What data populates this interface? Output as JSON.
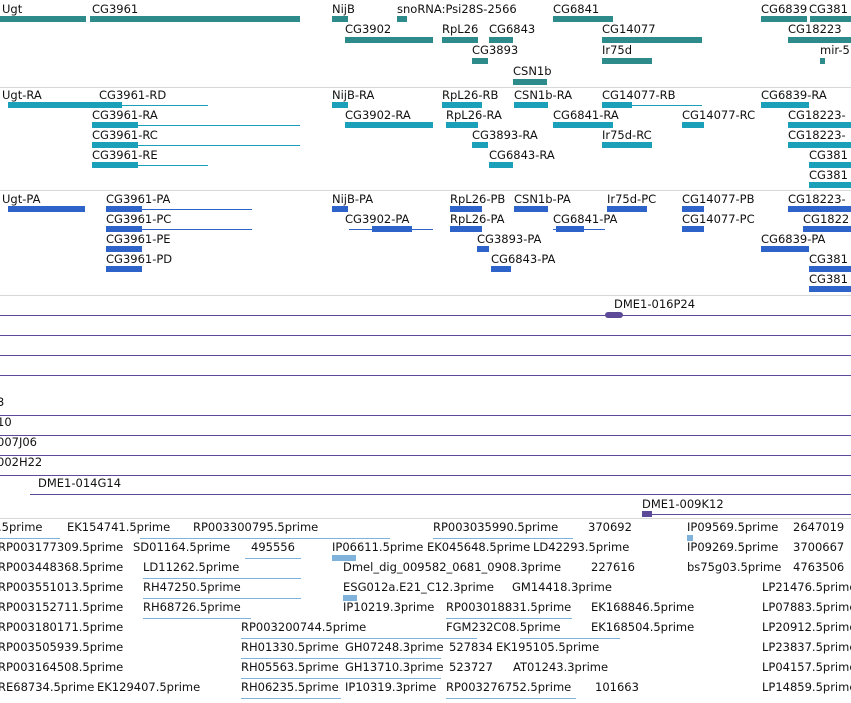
{
  "colors": {
    "gene": "#2e8b8b",
    "transcript_a": "#1aa0b8",
    "transcript_b": "#2e63c9",
    "clone": "#5c4a99",
    "est": "#7fb3db",
    "separator": "#d8d8d8"
  },
  "track_genes": [
    {
      "label": "Ugt"
    },
    {
      "label": "CG3961"
    },
    {
      "label": "NijB"
    },
    {
      "label": "snoRNA:Psi28S-2566"
    },
    {
      "label": "CG6841"
    },
    {
      "label": "CG6839"
    },
    {
      "label": "CG381"
    },
    {
      "label": "CG3902"
    },
    {
      "label": "RpL26"
    },
    {
      "label": "CG6843"
    },
    {
      "label": "CG14077"
    },
    {
      "label": "CG18223"
    },
    {
      "label": "CG3893"
    },
    {
      "label": "Ir75d"
    },
    {
      "label": "mir-5"
    },
    {
      "label": "CSN1b"
    }
  ],
  "track_transcripts_a": [
    {
      "label": "Ugt-RA"
    },
    {
      "label": "CG3961-RD"
    },
    {
      "label": "NijB-RA"
    },
    {
      "label": "RpL26-RB"
    },
    {
      "label": "CSN1b-RA"
    },
    {
      "label": "CG14077-RB"
    },
    {
      "label": "CG6839-RA"
    },
    {
      "label": "CG3961-RA"
    },
    {
      "label": "CG3902-RA"
    },
    {
      "label": "RpL26-RA"
    },
    {
      "label": "CG6841-RA"
    },
    {
      "label": "CG14077-RC"
    },
    {
      "label": "CG18223-"
    },
    {
      "label": "CG3961-RC"
    },
    {
      "label": "CG3893-RA"
    },
    {
      "label": "Ir75d-RC"
    },
    {
      "label": "CG18223-"
    },
    {
      "label": "CG3961-RE"
    },
    {
      "label": "CG6843-RA"
    },
    {
      "label": "CG381"
    },
    {
      "label": "CG381"
    }
  ],
  "track_transcripts_b": [
    {
      "label": "Ugt-PA"
    },
    {
      "label": "CG3961-PA"
    },
    {
      "label": "NijB-PA"
    },
    {
      "label": "RpL26-PB"
    },
    {
      "label": "CSN1b-PA"
    },
    {
      "label": "Ir75d-PC"
    },
    {
      "label": "CG14077-PB"
    },
    {
      "label": "CG18223-"
    },
    {
      "label": "CG3961-PC"
    },
    {
      "label": "CG3902-PA"
    },
    {
      "label": "RpL26-PA"
    },
    {
      "label": "CG6841-PA"
    },
    {
      "label": "CG14077-PC"
    },
    {
      "label": "CG1822"
    },
    {
      "label": "CG3961-PE"
    },
    {
      "label": "CG3893-PA"
    },
    {
      "label": "CG6839-PA"
    },
    {
      "label": "CG3961-PD"
    },
    {
      "label": "CG6843-PA"
    },
    {
      "label": "CG381"
    },
    {
      "label": "CG381"
    }
  ],
  "track_clones": [
    {
      "label": "DME1-016P24"
    },
    {
      "label": "3"
    },
    {
      "label": "10"
    },
    {
      "label": "007J06"
    },
    {
      "label": "002H22"
    },
    {
      "label": "DME1-014G14"
    },
    {
      "label": "DME1-009K12"
    }
  ],
  "track_ests": [
    {
      "label": ".5prime"
    },
    {
      "label": "EK154741.5prime"
    },
    {
      "label": "RP003300795.5prime"
    },
    {
      "label": "RP003035990.5prime"
    },
    {
      "label": "370692"
    },
    {
      "label": "IP09569.5prime"
    },
    {
      "label": "2647019"
    },
    {
      "label": "RP003177309.5prime"
    },
    {
      "label": "SD01164.5prime"
    },
    {
      "label": "495556"
    },
    {
      "label": "IP06611.5prime"
    },
    {
      "label": "EK045648.5prime"
    },
    {
      "label": "LD42293.5prime"
    },
    {
      "label": "IP09269.5prime"
    },
    {
      "label": "3700667"
    },
    {
      "label": "RP003448368.5prime"
    },
    {
      "label": "LD11262.5prime"
    },
    {
      "label": "Dmel_dig_009582_0681_0908.3prime"
    },
    {
      "label": "227616"
    },
    {
      "label": "bs75g03.5prime"
    },
    {
      "label": "4763506"
    },
    {
      "label": "RP003551013.5prime"
    },
    {
      "label": "RH47250.5prime"
    },
    {
      "label": "ESG012a.E21_C12.3prime"
    },
    {
      "label": "GM14418.3prime"
    },
    {
      "label": "LP21476.5prime"
    },
    {
      "label": "RP003152711.5prime"
    },
    {
      "label": "RH68726.5prime"
    },
    {
      "label": "IP10219.3prime"
    },
    {
      "label": "RP003018831.5prime"
    },
    {
      "label": "EK168846.5prime"
    },
    {
      "label": "LP07883.5prime"
    },
    {
      "label": "RP003180171.5prime"
    },
    {
      "label": "RP003200744.5prime"
    },
    {
      "label": "FGM232C08.5prime"
    },
    {
      "label": "EK168504.5prime"
    },
    {
      "label": "LP20912.5prime"
    },
    {
      "label": "RP003505939.5prime"
    },
    {
      "label": "RH01330.5prime"
    },
    {
      "label": "GH07248.3prime"
    },
    {
      "label": "527834"
    },
    {
      "label": "EK195105.5prime"
    },
    {
      "label": "LP23837.5prime"
    },
    {
      "label": "RP003164508.5prime"
    },
    {
      "label": "RH05563.5prime"
    },
    {
      "label": "GH13710.3prime"
    },
    {
      "label": "523727"
    },
    {
      "label": "AT01243.3prime"
    },
    {
      "label": "LP04157.5prime"
    },
    {
      "label": "RE68734.5prime"
    },
    {
      "label": "EK129407.5prime"
    },
    {
      "label": "RH06235.5prime"
    },
    {
      "label": "IP10319.3prime"
    },
    {
      "label": "RP003276752.5prime"
    },
    {
      "label": "101663"
    },
    {
      "label": "LP14859.5prime"
    }
  ]
}
